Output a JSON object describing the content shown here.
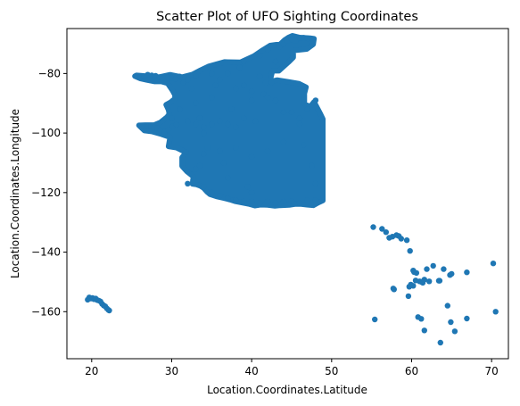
{
  "chart_data": {
    "type": "scatter",
    "title": "Scatter Plot of UFO Sighting Coordinates",
    "xlabel": "Location.Coordinates.Latitude",
    "ylabel": "Location.Coordinates.Longitude",
    "xlim": [
      16.9,
      72.1
    ],
    "ylim": [
      -175.8,
      -64.9
    ],
    "x_ticks": [
      20,
      30,
      40,
      50,
      60,
      70
    ],
    "y_ticks": [
      -160,
      -140,
      -120,
      -100,
      -80
    ],
    "grid": false,
    "legend": false,
    "marker_color": "#1f77b4",
    "series": [
      {
        "points": [
          [
            19.5,
            -156
          ],
          [
            19.7,
            -155.2
          ],
          [
            19.9,
            -155.6
          ],
          [
            20.1,
            -155.4
          ],
          [
            20.3,
            -155.8
          ],
          [
            20.5,
            -155.6
          ],
          [
            20.7,
            -156.1
          ],
          [
            20.9,
            -156.3
          ],
          [
            21.1,
            -156.6
          ],
          [
            21.3,
            -157.4
          ],
          [
            21.5,
            -157.9
          ],
          [
            21.7,
            -158.2
          ],
          [
            21.9,
            -158.9
          ],
          [
            22.1,
            -159.4
          ],
          [
            22.2,
            -159.6
          ],
          [
            25.6,
            -80.8
          ],
          [
            26.1,
            -81.2
          ],
          [
            26.6,
            -81
          ],
          [
            27,
            -80.4
          ],
          [
            27.5,
            -80.6
          ],
          [
            28,
            -80.8
          ],
          [
            28.5,
            -81.2
          ],
          [
            29,
            -81.6
          ],
          [
            29.5,
            -81.4
          ],
          [
            30,
            -81.6
          ],
          [
            30.5,
            -81.8
          ],
          [
            27,
            -97.6
          ],
          [
            27.4,
            -97.8
          ],
          [
            27.8,
            -98.2
          ],
          [
            28.2,
            -98.4
          ],
          [
            28.6,
            -99
          ],
          [
            29.1,
            -99.6
          ],
          [
            29.6,
            -98.8
          ],
          [
            30.1,
            -97.8
          ],
          [
            30.6,
            -97.2
          ],
          [
            31.5,
            -83
          ],
          [
            32,
            -82
          ],
          [
            32.5,
            -85
          ],
          [
            33,
            -90
          ],
          [
            33.5,
            -95
          ],
          [
            34,
            -100
          ],
          [
            34.5,
            -105
          ],
          [
            35,
            -88
          ],
          [
            35.5,
            -84
          ],
          [
            36,
            -82
          ],
          [
            36.5,
            -110
          ],
          [
            37,
            -115
          ],
          [
            37.5,
            -92
          ],
          [
            38,
            -85
          ],
          [
            38.5,
            -78
          ],
          [
            39,
            -76
          ],
          [
            39.5,
            -118
          ],
          [
            40,
            -120
          ],
          [
            40.5,
            -96
          ],
          [
            41,
            -74
          ],
          [
            41.5,
            -87
          ],
          [
            42,
            -72
          ],
          [
            42.5,
            -83
          ],
          [
            43,
            -76
          ],
          [
            43.5,
            -71
          ],
          [
            44,
            -70
          ],
          [
            44.5,
            -69
          ],
          [
            45,
            -68.5
          ],
          [
            45.5,
            -69
          ],
          [
            46,
            -68
          ],
          [
            46.5,
            -68
          ],
          [
            47,
            -68.2
          ],
          [
            32,
            -117
          ],
          [
            32.5,
            -114
          ],
          [
            33,
            -112
          ],
          [
            33.5,
            -111
          ],
          [
            34,
            -118
          ],
          [
            35,
            -120
          ],
          [
            36,
            -121
          ],
          [
            37,
            -122
          ],
          [
            38,
            -122.5
          ],
          [
            39,
            -123
          ],
          [
            40,
            -123
          ],
          [
            41,
            -123.5
          ],
          [
            42,
            -123
          ],
          [
            43,
            -123.5
          ],
          [
            44,
            -123
          ],
          [
            45,
            -122.8
          ],
          [
            46,
            -123.5
          ],
          [
            47,
            -122.5
          ],
          [
            48,
            -122.5
          ],
          [
            48,
            -117
          ],
          [
            47.5,
            -111
          ],
          [
            46.5,
            -104
          ],
          [
            46,
            -97
          ],
          [
            47,
            -92
          ],
          [
            48,
            -89
          ],
          [
            44,
            -103
          ],
          [
            42,
            -106
          ],
          [
            40,
            -108
          ],
          [
            38,
            -105
          ],
          [
            36,
            -106
          ],
          [
            34,
            -107
          ],
          [
            31.8,
            -106.4
          ],
          [
            30,
            -95
          ],
          [
            31,
            -92
          ],
          [
            32,
            -96
          ],
          [
            33,
            -97
          ],
          [
            34,
            -98
          ],
          [
            35,
            -97
          ],
          [
            36,
            -96
          ],
          [
            37,
            -97
          ],
          [
            38,
            -98
          ],
          [
            39,
            -95
          ],
          [
            40,
            -89
          ],
          [
            41,
            -81
          ],
          [
            42,
            -88
          ],
          [
            43,
            -89
          ],
          [
            44,
            -93
          ],
          [
            45,
            -93
          ],
          [
            46,
            -95
          ],
          [
            37,
            -80
          ],
          [
            35,
            -80
          ],
          [
            33,
            -81
          ],
          [
            31,
            -81
          ],
          [
            39,
            -84
          ],
          [
            40,
            -86
          ],
          [
            55.2,
            -131.6
          ],
          [
            55.4,
            -162.6
          ],
          [
            56.3,
            -132.2
          ],
          [
            56.8,
            -133.3
          ],
          [
            57.2,
            -135.2
          ],
          [
            57.6,
            -134.8
          ],
          [
            58.1,
            -134.3
          ],
          [
            58.4,
            -134.6
          ],
          [
            58.7,
            -135.5
          ],
          [
            59.4,
            -136
          ],
          [
            59.8,
            -139.6
          ],
          [
            60.2,
            -146.2
          ],
          [
            60.6,
            -147
          ],
          [
            61,
            -149.8
          ],
          [
            61.2,
            -150
          ],
          [
            61.4,
            -150.3
          ],
          [
            61.6,
            -149.2
          ],
          [
            61.9,
            -145.7
          ],
          [
            62.2,
            -149.8
          ],
          [
            63.5,
            -149.6
          ],
          [
            64,
            -145.7
          ],
          [
            64.8,
            -147.7
          ],
          [
            65,
            -147.3
          ],
          [
            66.9,
            -146.8
          ],
          [
            70.2,
            -143.8
          ],
          [
            70.5,
            -160
          ],
          [
            64.9,
            -163.5
          ],
          [
            64.5,
            -158
          ],
          [
            60.8,
            -161.8
          ],
          [
            61.2,
            -162.4
          ],
          [
            61.6,
            -166.3
          ],
          [
            63.6,
            -170.4
          ],
          [
            65.4,
            -166.6
          ],
          [
            66.9,
            -162.3
          ],
          [
            59.7,
            -151.6
          ],
          [
            59.9,
            -150.9
          ],
          [
            60.2,
            -151.3
          ],
          [
            60.5,
            -149.5
          ],
          [
            57.8,
            -152.5
          ],
          [
            57.7,
            -152.2
          ],
          [
            59.6,
            -154.8
          ],
          [
            60.3,
            -146.7
          ],
          [
            62.7,
            -144.6
          ],
          [
            63.4,
            -149.6
          ]
        ]
      }
    ],
    "dense_region": [
      [
        25.6,
        -80.6
      ],
      [
        27,
        -80.9
      ],
      [
        28.4,
        -81.2
      ],
      [
        29.8,
        -80.4
      ],
      [
        31.3,
        -81.2
      ],
      [
        32.6,
        -80.3
      ],
      [
        33.6,
        -78.9
      ],
      [
        34.6,
        -77.6
      ],
      [
        36.6,
        -76.1
      ],
      [
        38.6,
        -76.2
      ],
      [
        40.3,
        -74.1
      ],
      [
        41.4,
        -72.1
      ],
      [
        42.3,
        -70.6
      ],
      [
        43.6,
        -70.1
      ],
      [
        44.1,
        -68.8
      ],
      [
        44.6,
        -67.9
      ],
      [
        45.1,
        -67.3
      ],
      [
        46,
        -67.9
      ],
      [
        46.5,
        -68
      ],
      [
        47.3,
        -68.1
      ],
      [
        47.8,
        -68.3
      ],
      [
        47.7,
        -70.2
      ],
      [
        46.9,
        -71.8
      ],
      [
        45.2,
        -72.3
      ],
      [
        45.2,
        -74.6
      ],
      [
        44.6,
        -76.2
      ],
      [
        43.4,
        -79.1
      ],
      [
        42.6,
        -79.1
      ],
      [
        42.3,
        -82.4
      ],
      [
        41.7,
        -83.1
      ],
      [
        43.2,
        -82.2
      ],
      [
        44.6,
        -82.8
      ],
      [
        45.9,
        -83.4
      ],
      [
        46.8,
        -84.6
      ],
      [
        46.6,
        -86.7
      ],
      [
        46.6,
        -90.2
      ],
      [
        47.3,
        -91.2
      ],
      [
        47.8,
        -89.5
      ],
      [
        48.6,
        -93.6
      ],
      [
        48.9,
        -95.3
      ],
      [
        48.9,
        -97.2
      ],
      [
        48.9,
        -103.2
      ],
      [
        48.9,
        -110.1
      ],
      [
        48.9,
        -117.1
      ],
      [
        48.9,
        -122.7
      ],
      [
        48.3,
        -123.4
      ],
      [
        47.7,
        -124.3
      ],
      [
        46.9,
        -124.1
      ],
      [
        46.2,
        -123.9
      ],
      [
        45.4,
        -123.9
      ],
      [
        44.7,
        -124.2
      ],
      [
        43.6,
        -124.3
      ],
      [
        42.9,
        -124.5
      ],
      [
        42,
        -124.2
      ],
      [
        41.1,
        -124.1
      ],
      [
        40.4,
        -124.4
      ],
      [
        39.6,
        -123.8
      ],
      [
        38.6,
        -123.3
      ],
      [
        37.9,
        -122.9
      ],
      [
        37.3,
        -122.4
      ],
      [
        36.6,
        -121.9
      ],
      [
        35.6,
        -121.3
      ],
      [
        34.8,
        -120.6
      ],
      [
        34.4,
        -119.7
      ],
      [
        34,
        -118.5
      ],
      [
        33.6,
        -117.8
      ],
      [
        33.1,
        -117.3
      ],
      [
        32.6,
        -117.1
      ],
      [
        32.7,
        -114.6
      ],
      [
        31.9,
        -112.9
      ],
      [
        31.3,
        -111.1
      ],
      [
        31.3,
        -108.2
      ],
      [
        31.8,
        -106.5
      ],
      [
        30.6,
        -104.9
      ],
      [
        29.6,
        -104.5
      ],
      [
        29.8,
        -101.4
      ],
      [
        28.7,
        -100.4
      ],
      [
        27.5,
        -99.5
      ],
      [
        26.6,
        -99.2
      ],
      [
        25.9,
        -97.4
      ],
      [
        26.7,
        -97.3
      ],
      [
        27.8,
        -97.3
      ],
      [
        28.6,
        -96.4
      ],
      [
        29.4,
        -94.7
      ],
      [
        29.7,
        -93.6
      ],
      [
        29.6,
        -92.2
      ],
      [
        29.3,
        -90.5
      ],
      [
        29.9,
        -89.6
      ],
      [
        30.4,
        -88.4
      ],
      [
        30.4,
        -87.2
      ],
      [
        30.1,
        -85.7
      ],
      [
        29.8,
        -84.5
      ],
      [
        29.5,
        -83.3
      ],
      [
        28.7,
        -82.7
      ],
      [
        27.9,
        -82.7
      ],
      [
        26.9,
        -82.2
      ],
      [
        26.1,
        -81.7
      ],
      [
        25.4,
        -80.9
      ]
    ]
  }
}
